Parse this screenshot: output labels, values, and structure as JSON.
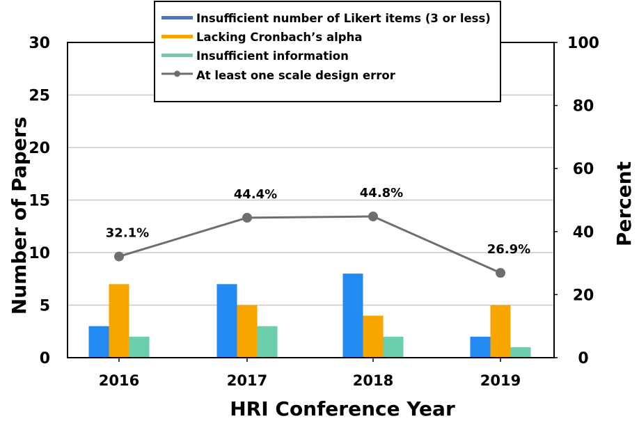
{
  "chart_data": {
    "type": "bar",
    "title": "",
    "xlabel": "HRI Conference Year",
    "ylabel": "Number of Papers",
    "y2label": "Percent",
    "categories": [
      "2016",
      "2017",
      "2018",
      "2019"
    ],
    "ylim": [
      0,
      30
    ],
    "yticks": [
      0,
      5,
      10,
      15,
      20,
      25,
      30
    ],
    "y2lim": [
      0,
      100
    ],
    "y2ticks": [
      0,
      20,
      40,
      60,
      80,
      100
    ],
    "grid": true,
    "legend_position": "top",
    "series": [
      {
        "name": "Insufficient number of Likert items (3 or less)",
        "type": "bar",
        "axis": "left",
        "color": "#2389f3",
        "values": [
          3,
          7,
          8,
          2
        ]
      },
      {
        "name": "Lacking Cronbach’s alpha",
        "type": "bar",
        "axis": "left",
        "color": "#f8a500",
        "values": [
          7,
          5,
          4,
          5
        ]
      },
      {
        "name": "Insufficient information",
        "type": "bar",
        "axis": "left",
        "color": "#6bcfab",
        "values": [
          2,
          3,
          2,
          1
        ]
      },
      {
        "name": "At least one scale design error",
        "type": "line",
        "axis": "right",
        "color": "#6e6e6e",
        "values": [
          32.1,
          44.4,
          44.8,
          26.9
        ],
        "labels": [
          "32.1%",
          "44.4%",
          "44.8%",
          "26.9%"
        ]
      }
    ]
  }
}
